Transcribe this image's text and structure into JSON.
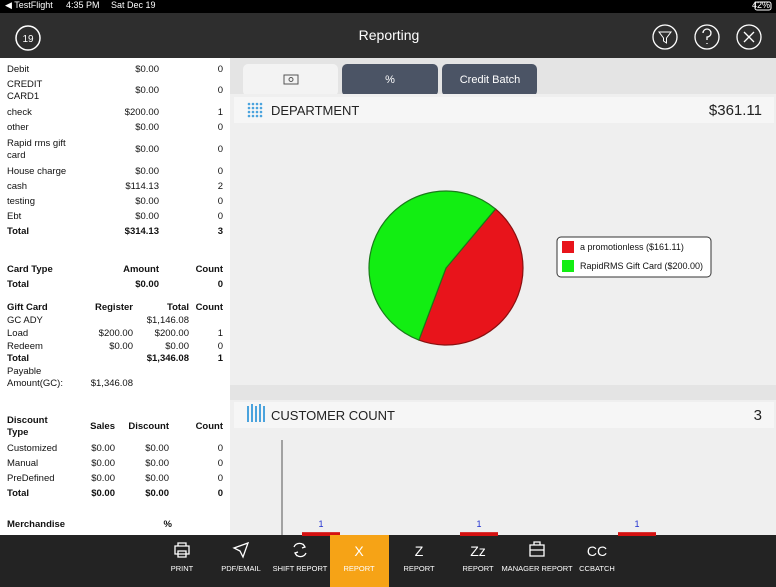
{
  "status_bar": {
    "app": "◀ TestFlight",
    "time": "4:35 PM",
    "date": "Sat Dec 19",
    "battery": "42%"
  },
  "header": {
    "title": "Reporting",
    "calendar_day": "19"
  },
  "left_panel": {
    "tender": {
      "rows": [
        [
          "Debit",
          "$0.00",
          "0"
        ],
        [
          "CREDIT CARD1",
          "$0.00",
          "0"
        ],
        [
          "check",
          "$200.00",
          "1"
        ],
        [
          "other",
          "$0.00",
          "0"
        ],
        [
          "Rapid rms gift card",
          "$0.00",
          "0"
        ],
        [
          "House charge",
          "$0.00",
          "0"
        ],
        [
          "cash",
          "$114.13",
          "2"
        ],
        [
          "testing",
          "$0.00",
          "0"
        ],
        [
          "Ebt",
          "$0.00",
          "0"
        ],
        [
          "Total",
          "$314.13",
          "3"
        ]
      ]
    },
    "card_type": {
      "header": [
        "Card Type",
        "Amount",
        "Count"
      ],
      "rows": [
        [
          "Total",
          "$0.00",
          "0"
        ]
      ]
    },
    "gift_card": {
      "header": [
        "Gift Card",
        "Register",
        "Total",
        "Count"
      ],
      "rows": [
        [
          "GC ADY",
          null,
          "$1,146.08",
          null
        ],
        [
          "Load",
          "$200.00",
          "$200.00",
          "1"
        ],
        [
          "Redeem",
          "$0.00",
          "$0.00",
          "0"
        ],
        [
          "Total",
          null,
          "$1,346.08",
          "1"
        ],
        [
          "Payable Amount(GC):",
          "$1,346.08",
          null,
          null
        ]
      ]
    },
    "discount": {
      "header": [
        "Discount Type",
        "Sales",
        "Discount",
        "Count"
      ],
      "rows": [
        [
          "Customized",
          "$0.00",
          "$0.00",
          "0"
        ],
        [
          "Manual",
          "$0.00",
          "$0.00",
          "0"
        ],
        [
          "PreDefined",
          "$0.00",
          "$0.00",
          "0"
        ],
        [
          "Total",
          "$0.00",
          "$0.00",
          "0"
        ]
      ]
    },
    "merchandise": {
      "header": [
        "Merchandise",
        "%"
      ]
    }
  },
  "tabs": [
    "%",
    "Credit Batch"
  ],
  "department": {
    "title": "DEPARTMENT",
    "total": "$361.11",
    "chart": {
      "type": "pie",
      "labels": [
        "a promotionless  ($161.11)",
        "RapidRMS Gift Card ($200.00)"
      ],
      "values": [
        161.11,
        200
      ],
      "colors": [
        "#e8141b",
        "#12ee12"
      ]
    }
  },
  "customer_count": {
    "title": "CUSTOMER COUNT",
    "total": "3",
    "chart": {
      "type": "bar",
      "values": [
        1,
        1,
        1
      ],
      "color": "#d41010",
      "ylim": [
        0,
        25
      ]
    }
  },
  "toolbar": [
    {
      "label": "PRINT"
    },
    {
      "label": "PDF/EMAIL"
    },
    {
      "label": "SHIFT REPORT"
    },
    {
      "icon": "X",
      "label": "REPORT"
    },
    {
      "icon": "Z",
      "label": "REPORT"
    },
    {
      "icon": "Zz",
      "label": "REPORT"
    },
    {
      "label": "MANAGER REPORT"
    },
    {
      "icon": "CC",
      "label": "CCBATCH"
    }
  ]
}
